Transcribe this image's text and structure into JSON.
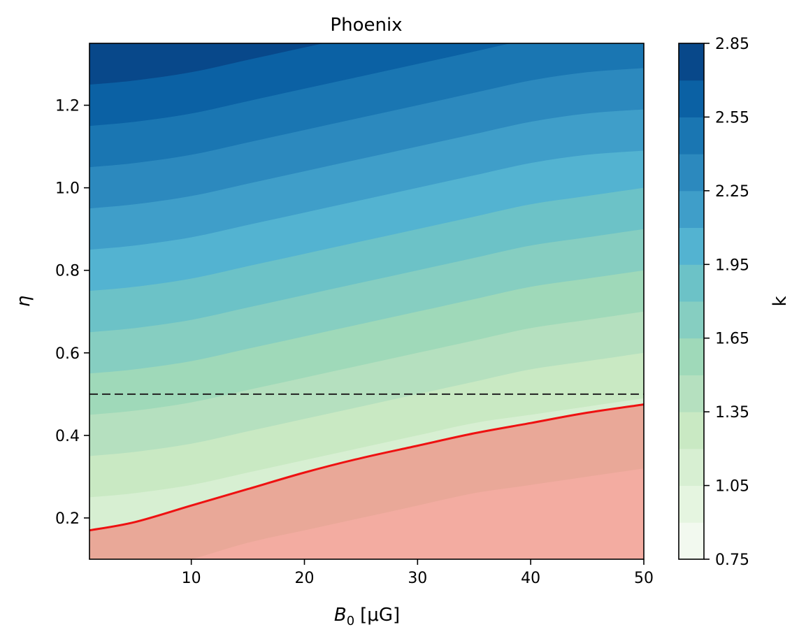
{
  "chart_data": {
    "type": "contour",
    "title": "Phoenix",
    "xlabel_main": "B",
    "xlabel_sub": "0",
    "xlabel_unit": "[μG]",
    "ylabel": "η",
    "colorbar_label": "k",
    "xlim": [
      1,
      50
    ],
    "ylim": [
      0.1,
      1.35
    ],
    "x_ticks": [
      10,
      20,
      30,
      40,
      50
    ],
    "x_tick_labels": [
      "10",
      "20",
      "30",
      "40",
      "50"
    ],
    "y_ticks": [
      0.2,
      0.4,
      0.6,
      0.8,
      1.0,
      1.2
    ],
    "y_tick_labels": [
      "0.2",
      "0.4",
      "0.6",
      "0.8",
      "1.0",
      "1.2"
    ],
    "colorbar_ticks": [
      0.75,
      1.05,
      1.35,
      1.65,
      1.95,
      2.25,
      2.55,
      2.85
    ],
    "colorbar_tick_labels": [
      "0.75",
      "1.05",
      "1.35",
      "1.65",
      "1.95",
      "2.25",
      "2.55",
      "2.85"
    ],
    "levels": [
      0.75,
      0.9,
      1.05,
      1.2,
      1.35,
      1.5,
      1.65,
      1.8,
      1.95,
      2.1,
      2.25,
      2.4,
      2.55,
      2.7,
      2.85
    ],
    "colormap": [
      "#f2f9ef",
      "#e5f5e0",
      "#d7efd2",
      "#c9e9c3",
      "#b5e0bf",
      "#9fd9b9",
      "#86cec1",
      "#6cc2c7",
      "#53b3d1",
      "#3f9ec9",
      "#2c89be",
      "#1a76b2",
      "#0b61a4",
      "#08488a"
    ],
    "contour_boundaries": {
      "x": [
        1,
        5,
        10,
        15,
        20,
        25,
        30,
        35,
        40,
        45,
        50
      ],
      "lines": [
        {
          "level": 0.9,
          "y": [
            0.08,
            0.085,
            0.1,
            0.13,
            0.16,
            0.19,
            0.22,
            0.25,
            0.27,
            0.29,
            0.31
          ]
        },
        {
          "level": 1.05,
          "y": [
            0.15,
            0.16,
            0.19,
            0.22,
            0.26,
            0.29,
            0.32,
            0.35,
            0.37,
            0.39,
            0.41
          ]
        },
        {
          "level": 1.2,
          "y": [
            0.25,
            0.26,
            0.28,
            0.31,
            0.34,
            0.37,
            0.4,
            0.43,
            0.45,
            0.47,
            0.49
          ]
        },
        {
          "level": 1.35,
          "y": [
            0.35,
            0.36,
            0.38,
            0.41,
            0.44,
            0.47,
            0.5,
            0.53,
            0.56,
            0.58,
            0.6
          ]
        },
        {
          "level": 1.5,
          "y": [
            0.45,
            0.46,
            0.48,
            0.51,
            0.54,
            0.57,
            0.6,
            0.63,
            0.66,
            0.68,
            0.7
          ]
        },
        {
          "level": 1.65,
          "y": [
            0.55,
            0.56,
            0.58,
            0.61,
            0.64,
            0.67,
            0.7,
            0.73,
            0.76,
            0.78,
            0.8
          ]
        },
        {
          "level": 1.8,
          "y": [
            0.65,
            0.66,
            0.68,
            0.71,
            0.74,
            0.77,
            0.8,
            0.83,
            0.86,
            0.88,
            0.9
          ]
        },
        {
          "level": 1.95,
          "y": [
            0.75,
            0.76,
            0.78,
            0.81,
            0.84,
            0.87,
            0.9,
            0.93,
            0.96,
            0.98,
            1.0
          ]
        },
        {
          "level": 2.1,
          "y": [
            0.85,
            0.86,
            0.88,
            0.91,
            0.94,
            0.97,
            1.0,
            1.03,
            1.06,
            1.08,
            1.09
          ]
        },
        {
          "level": 2.25,
          "y": [
            0.95,
            0.96,
            0.98,
            1.01,
            1.04,
            1.07,
            1.1,
            1.13,
            1.16,
            1.18,
            1.19
          ]
        },
        {
          "level": 2.4,
          "y": [
            1.05,
            1.06,
            1.08,
            1.11,
            1.14,
            1.17,
            1.2,
            1.23,
            1.26,
            1.28,
            1.29
          ]
        },
        {
          "level": 2.55,
          "y": [
            1.15,
            1.16,
            1.18,
            1.21,
            1.24,
            1.27,
            1.3,
            1.33,
            1.36,
            1.38,
            1.39
          ]
        },
        {
          "level": 2.7,
          "y": [
            1.25,
            1.26,
            1.28,
            1.31,
            1.34,
            1.37,
            1.4,
            1.43,
            1.46,
            1.48,
            1.49
          ]
        }
      ]
    },
    "excluded_region": {
      "boundary_x": [
        1,
        5,
        10,
        15,
        20,
        25,
        30,
        35,
        40,
        45,
        50
      ],
      "boundary_y": [
        0.17,
        0.19,
        0.23,
        0.27,
        0.31,
        0.345,
        0.375,
        0.405,
        0.43,
        0.455,
        0.475
      ],
      "line_color": "#ee1111",
      "fill_color_dark": "#e9a898",
      "fill_color_light": "#f3aca1",
      "inner_boundary_y": [
        0.06,
        0.07,
        0.1,
        0.14,
        0.17,
        0.2,
        0.23,
        0.26,
        0.28,
        0.3,
        0.32
      ]
    },
    "reference_line": {
      "y": 0.5,
      "style": "dashed",
      "color": "#222222"
    }
  }
}
